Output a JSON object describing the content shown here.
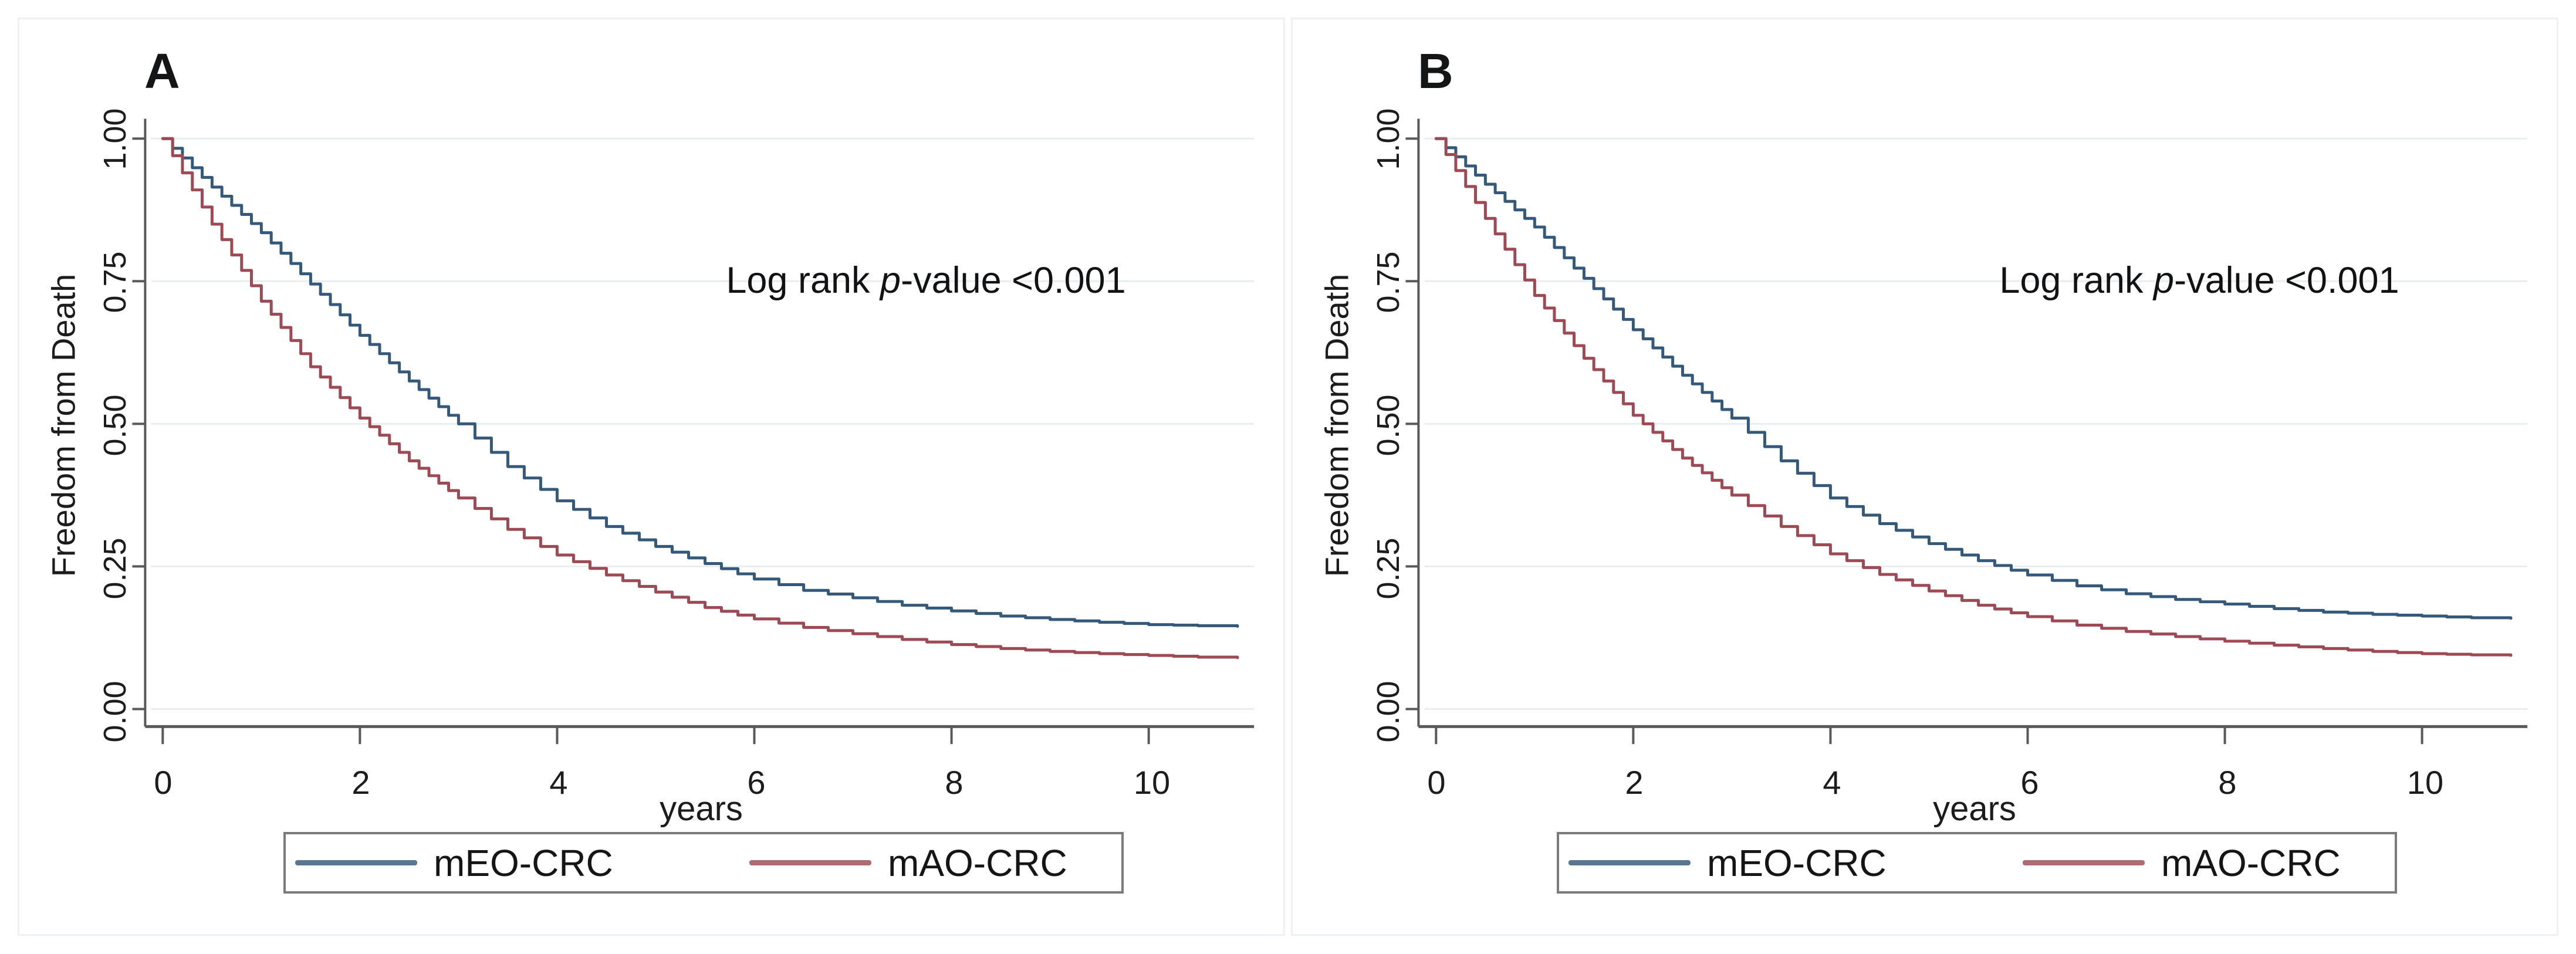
{
  "style": {
    "background": "#ffffff",
    "card_border": "#edf0f4",
    "axis_color": "#58595b",
    "grid_color": "#e9edf2",
    "text_color": "#1b1c1e",
    "legend_border": "#797b7e",
    "navy": "#35597a",
    "maroon": "#9d4a54"
  },
  "ui": {
    "annotation": {
      "prefix": "Log rank ",
      "italic": "p",
      "suffix": "-value <0.001"
    }
  },
  "chart_data": [
    {
      "type": "line",
      "title": "A",
      "xlabel": "years",
      "ylabel": "Freedom from Death",
      "annotation": "Log rank p-value <0.001",
      "xlim": [
        0,
        11
      ],
      "ylim": [
        0,
        1
      ],
      "x_ticks": [
        0,
        2,
        4,
        6,
        8,
        10
      ],
      "x_tick_labels": [
        "0",
        "2",
        "4",
        "6",
        "8",
        "10"
      ],
      "y_ticks": [
        1.0,
        0.75,
        0.5,
        0.25,
        0.0
      ],
      "y_tick_labels": [
        "1.00",
        "0.75",
        "0.50",
        "0.25",
        "0.00"
      ],
      "grid": "horizontal",
      "legend_position": "bottom-box",
      "curve_style": "kaplan-meier-step",
      "series": [
        {
          "name": "mEO-CRC",
          "color": "#35597a",
          "x": [
            0,
            0.5,
            1,
            1.5,
            2,
            2.5,
            3,
            3.5,
            4,
            4.5,
            5,
            5.5,
            6,
            6.5,
            7,
            7.5,
            8,
            8.5,
            9,
            9.5,
            10,
            10.5,
            10.9
          ],
          "y": [
            1.0,
            0.915,
            0.835,
            0.745,
            0.655,
            0.575,
            0.5,
            0.425,
            0.365,
            0.32,
            0.285,
            0.255,
            0.228,
            0.208,
            0.195,
            0.182,
            0.172,
            0.163,
            0.157,
            0.152,
            0.148,
            0.146,
            0.145
          ]
        },
        {
          "name": "mAO-CRC",
          "color": "#9d4a54",
          "x": [
            0,
            0.5,
            1,
            1.5,
            2,
            2.5,
            3,
            3.5,
            4,
            4.5,
            5,
            5.5,
            6,
            6.5,
            7,
            7.5,
            8,
            8.5,
            9,
            9.5,
            10,
            10.5,
            10.9
          ],
          "y": [
            1.0,
            0.85,
            0.715,
            0.6,
            0.51,
            0.435,
            0.37,
            0.315,
            0.27,
            0.235,
            0.205,
            0.178,
            0.158,
            0.143,
            0.132,
            0.122,
            0.113,
            0.106,
            0.101,
            0.097,
            0.094,
            0.091,
            0.09
          ]
        }
      ]
    },
    {
      "type": "line",
      "title": "B",
      "xlabel": "years",
      "ylabel": "Freedom from Death",
      "annotation": "Log rank p-value <0.001",
      "xlim": [
        0,
        11
      ],
      "ylim": [
        0,
        1
      ],
      "x_ticks": [
        0,
        2,
        4,
        6,
        8,
        10
      ],
      "x_tick_labels": [
        "0",
        "2",
        "4",
        "6",
        "8",
        "10"
      ],
      "y_ticks": [
        1.0,
        0.75,
        0.5,
        0.25,
        0.0
      ],
      "y_tick_labels": [
        "1.00",
        "0.75",
        "0.50",
        "0.25",
        "0.00"
      ],
      "grid": "horizontal",
      "legend_position": "bottom-box",
      "curve_style": "kaplan-meier-step",
      "series": [
        {
          "name": "mEO-CRC",
          "color": "#35597a",
          "x": [
            0,
            0.5,
            1,
            1.5,
            2,
            2.5,
            3,
            3.5,
            4,
            4.5,
            5,
            5.5,
            6,
            6.5,
            7,
            7.5,
            8,
            8.5,
            9,
            9.5,
            10,
            10.5,
            10.9
          ],
          "y": [
            1.0,
            0.92,
            0.845,
            0.755,
            0.665,
            0.585,
            0.51,
            0.435,
            0.37,
            0.325,
            0.29,
            0.26,
            0.235,
            0.216,
            0.202,
            0.192,
            0.184,
            0.176,
            0.17,
            0.166,
            0.163,
            0.16,
            0.159
          ]
        },
        {
          "name": "mAO-CRC",
          "color": "#9d4a54",
          "x": [
            0,
            0.5,
            1,
            1.5,
            2,
            2.5,
            3,
            3.5,
            4,
            4.5,
            5,
            5.5,
            6,
            6.5,
            7,
            7.5,
            8,
            8.5,
            9,
            9.5,
            10,
            10.5,
            10.9
          ],
          "y": [
            1.0,
            0.86,
            0.725,
            0.615,
            0.515,
            0.44,
            0.375,
            0.32,
            0.272,
            0.236,
            0.207,
            0.182,
            0.162,
            0.147,
            0.136,
            0.127,
            0.119,
            0.112,
            0.106,
            0.101,
            0.097,
            0.095,
            0.094
          ]
        }
      ]
    }
  ]
}
